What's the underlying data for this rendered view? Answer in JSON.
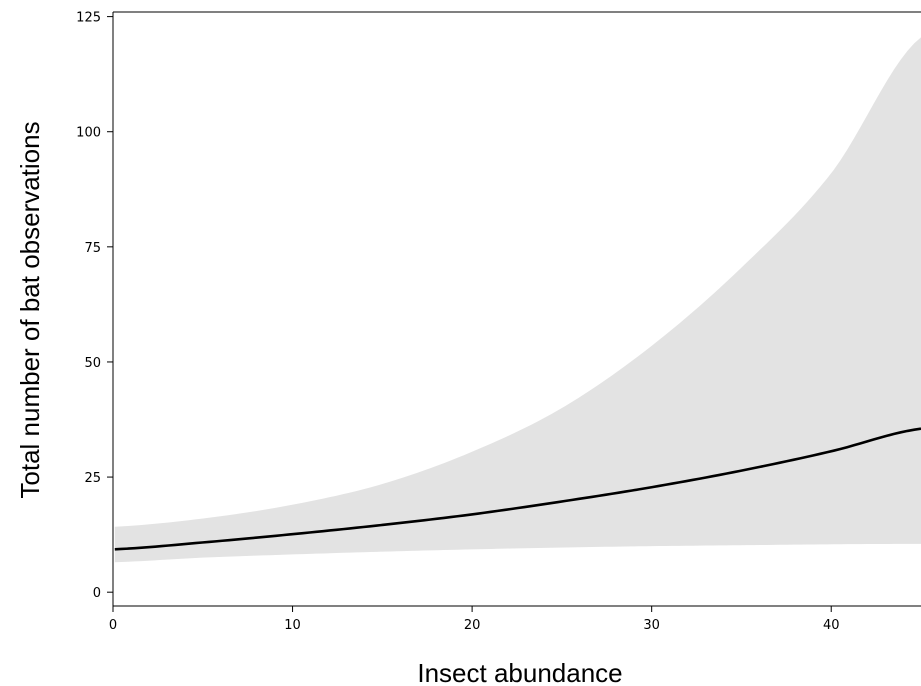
{
  "chart_data": {
    "type": "line",
    "title": "",
    "xlabel": "Insect abundance",
    "ylabel": "Total number of bat observations",
    "xlim": [
      0,
      45
    ],
    "ylim": [
      -3,
      126
    ],
    "x_ticks": [
      0,
      10,
      20,
      30,
      40
    ],
    "y_ticks": [
      0,
      25,
      50,
      75,
      100,
      125
    ],
    "grid": false,
    "legend": "none",
    "series": [
      {
        "kind": "line",
        "color": "#000000",
        "x": [
          0,
          5,
          10,
          15,
          20,
          25,
          30,
          35,
          40,
          45
        ],
        "y": [
          9.3,
          10.8,
          12.6,
          14.6,
          16.9,
          19.7,
          22.8,
          26.4,
          30.6,
          35.5
        ]
      }
    ],
    "band": {
      "kind": "confidence-band",
      "color": "#e3e3e3",
      "x": [
        0,
        5,
        10,
        15,
        20,
        25,
        30,
        35,
        40,
        45
      ],
      "lower": [
        6.5,
        7.5,
        8.2,
        8.8,
        9.3,
        9.7,
        10.0,
        10.2,
        10.4,
        10.5
      ],
      "upper": [
        14.2,
        16.0,
        19.0,
        23.5,
        30.5,
        40.0,
        53.5,
        70.5,
        91.0,
        120.5
      ]
    }
  }
}
